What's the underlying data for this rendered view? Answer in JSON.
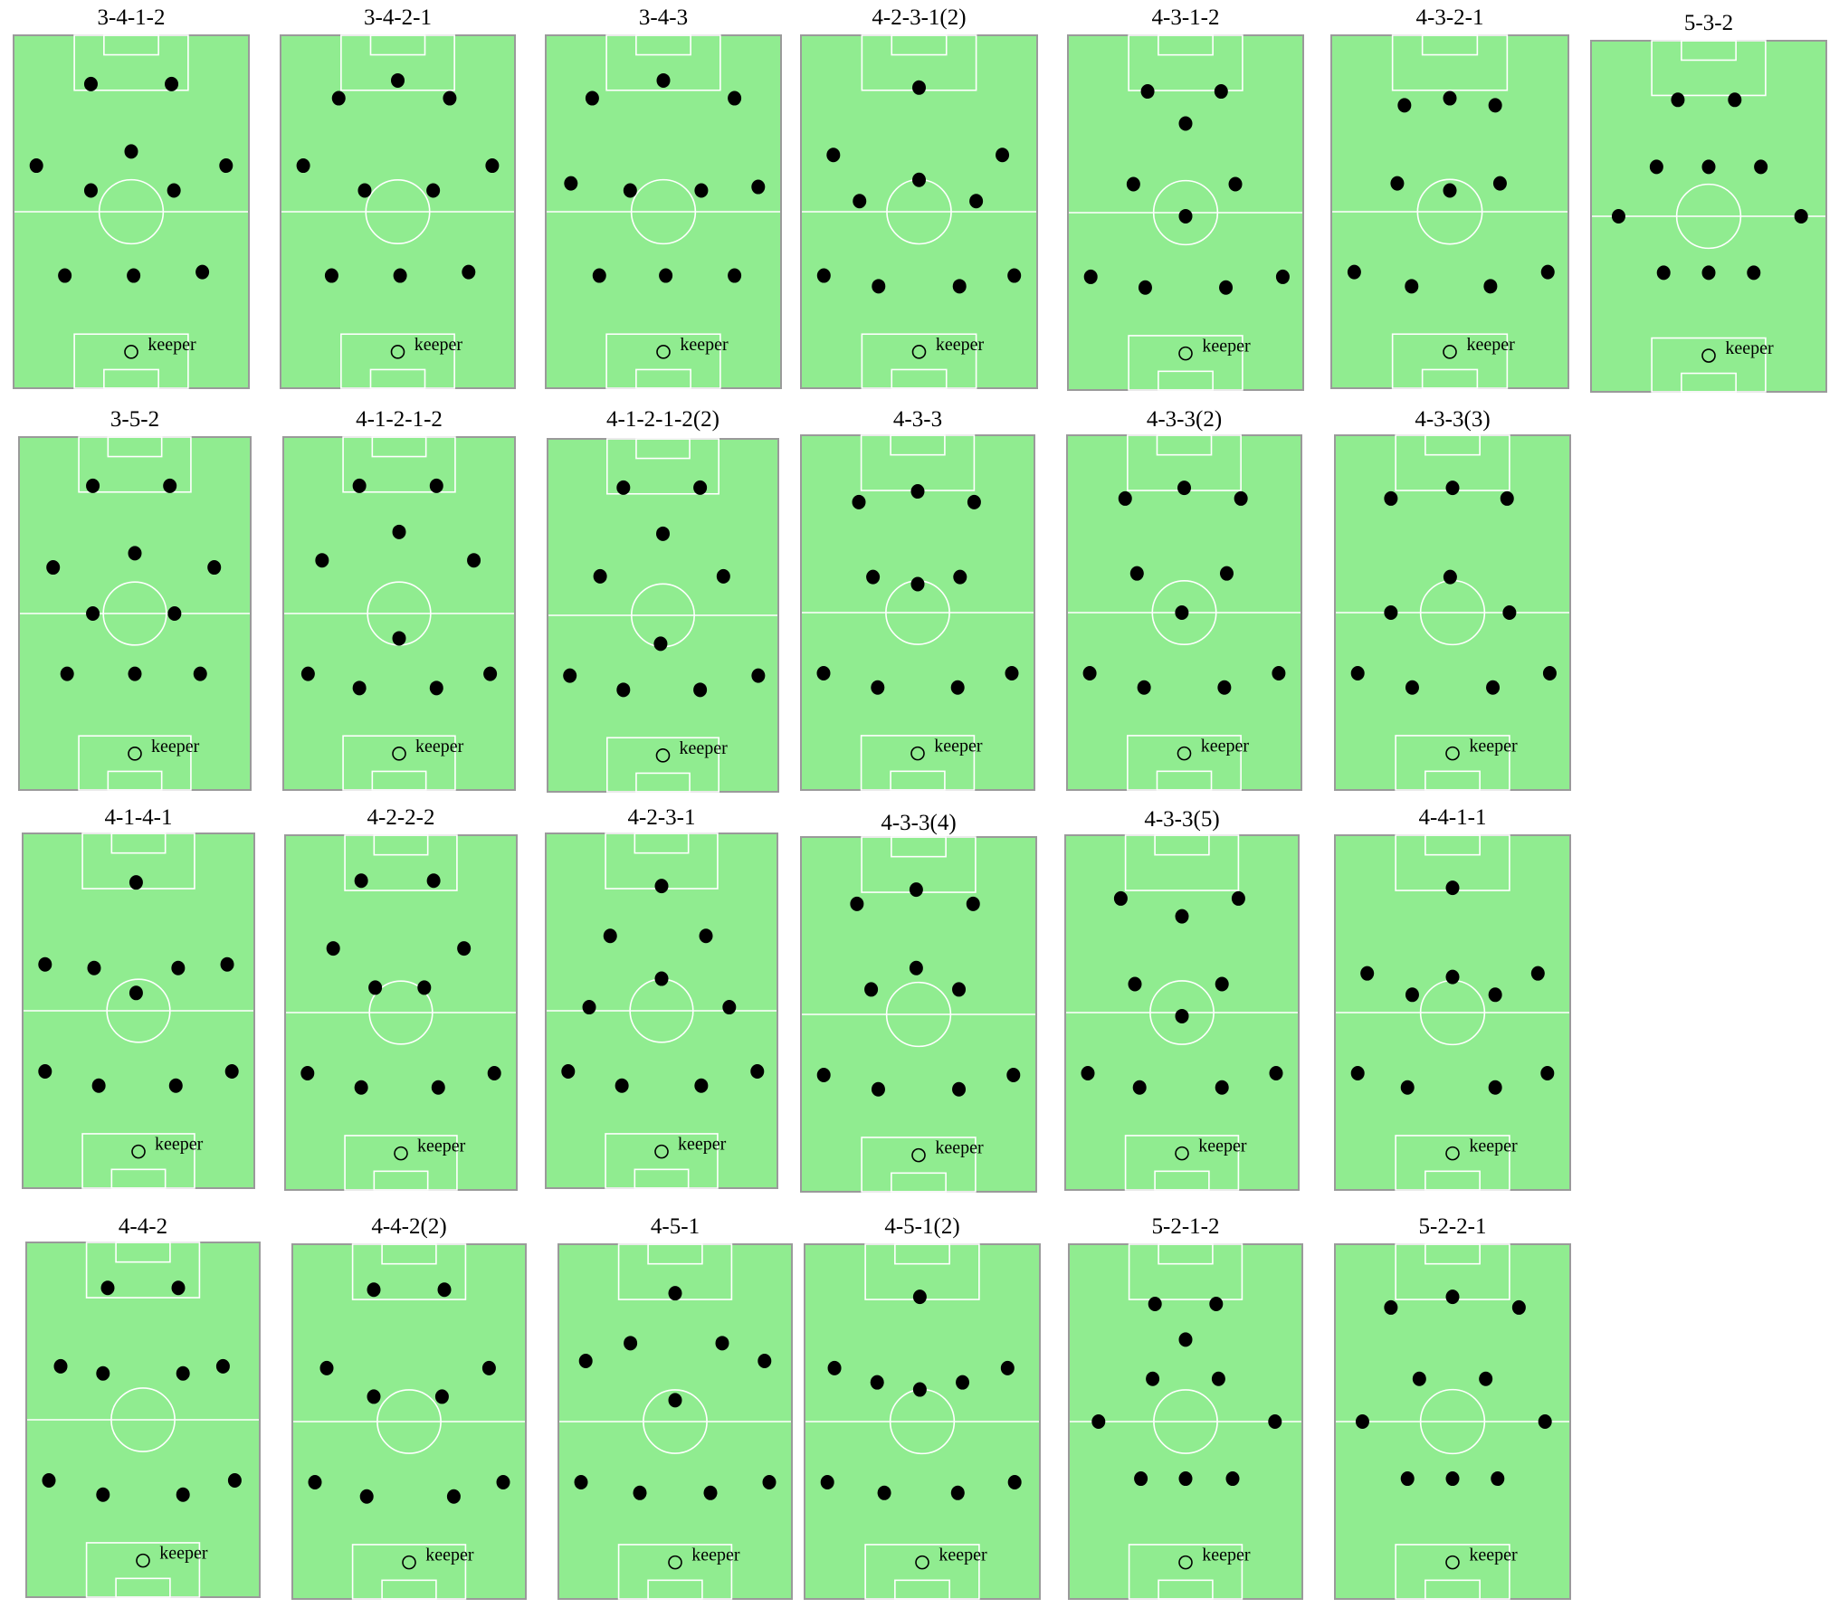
{
  "keeper_label": "keeper",
  "colors": {
    "pitch": "#90ec90",
    "pitch_border": "#9a9a9a",
    "lines": "#ffffff",
    "player": "#000000"
  },
  "formations": [
    {
      "name": "3-4-1-2",
      "players": [
        [
          0.33,
          0.14
        ],
        [
          0.67,
          0.14
        ],
        [
          0.1,
          0.37
        ],
        [
          0.5,
          0.33
        ],
        [
          0.9,
          0.37
        ],
        [
          0.33,
          0.44
        ],
        [
          0.68,
          0.44
        ],
        [
          0.22,
          0.68
        ],
        [
          0.51,
          0.68
        ],
        [
          0.8,
          0.67
        ]
      ]
    },
    {
      "name": "3-4-2-1",
      "players": [
        [
          0.5,
          0.13
        ],
        [
          0.25,
          0.18
        ],
        [
          0.72,
          0.18
        ],
        [
          0.1,
          0.37
        ],
        [
          0.36,
          0.44
        ],
        [
          0.65,
          0.44
        ],
        [
          0.9,
          0.37
        ],
        [
          0.22,
          0.68
        ],
        [
          0.51,
          0.68
        ],
        [
          0.8,
          0.67
        ]
      ]
    },
    {
      "name": "3-4-3",
      "players": [
        [
          0.5,
          0.13
        ],
        [
          0.2,
          0.18
        ],
        [
          0.8,
          0.18
        ],
        [
          0.11,
          0.42
        ],
        [
          0.36,
          0.44
        ],
        [
          0.66,
          0.44
        ],
        [
          0.9,
          0.43
        ],
        [
          0.23,
          0.68
        ],
        [
          0.51,
          0.68
        ],
        [
          0.8,
          0.68
        ]
      ]
    },
    {
      "name": "4-2-3-1(2)",
      "players": [
        [
          0.5,
          0.15
        ],
        [
          0.14,
          0.34
        ],
        [
          0.85,
          0.34
        ],
        [
          0.25,
          0.47
        ],
        [
          0.5,
          0.41
        ],
        [
          0.74,
          0.47
        ],
        [
          0.1,
          0.68
        ],
        [
          0.33,
          0.71
        ],
        [
          0.67,
          0.71
        ],
        [
          0.9,
          0.68
        ]
      ]
    },
    {
      "name": "4-3-1-2",
      "players": [
        [
          0.34,
          0.16
        ],
        [
          0.65,
          0.16
        ],
        [
          0.5,
          0.25
        ],
        [
          0.28,
          0.42
        ],
        [
          0.71,
          0.42
        ],
        [
          0.5,
          0.51
        ],
        [
          0.1,
          0.68
        ],
        [
          0.33,
          0.71
        ],
        [
          0.67,
          0.71
        ],
        [
          0.91,
          0.68
        ]
      ]
    },
    {
      "name": "4-3-2-1",
      "players": [
        [
          0.31,
          0.2
        ],
        [
          0.5,
          0.18
        ],
        [
          0.69,
          0.2
        ],
        [
          0.28,
          0.42
        ],
        [
          0.5,
          0.44
        ],
        [
          0.71,
          0.42
        ],
        [
          0.1,
          0.67
        ],
        [
          0.34,
          0.71
        ],
        [
          0.67,
          0.71
        ],
        [
          0.91,
          0.67
        ]
      ]
    },
    {
      "name": "5-3-2",
      "players": [
        [
          0.37,
          0.17
        ],
        [
          0.61,
          0.17
        ],
        [
          0.28,
          0.36
        ],
        [
          0.5,
          0.36
        ],
        [
          0.72,
          0.36
        ],
        [
          0.12,
          0.5
        ],
        [
          0.89,
          0.5
        ],
        [
          0.31,
          0.66
        ],
        [
          0.5,
          0.66
        ],
        [
          0.69,
          0.66
        ]
      ]
    },
    {
      "name": "3-5-2",
      "players": [
        [
          0.32,
          0.14
        ],
        [
          0.65,
          0.14
        ],
        [
          0.15,
          0.37
        ],
        [
          0.5,
          0.33
        ],
        [
          0.84,
          0.37
        ],
        [
          0.32,
          0.5
        ],
        [
          0.67,
          0.5
        ],
        [
          0.21,
          0.67
        ],
        [
          0.5,
          0.67
        ],
        [
          0.78,
          0.67
        ]
      ]
    },
    {
      "name": "4-1-2-1-2",
      "players": [
        [
          0.33,
          0.14
        ],
        [
          0.66,
          0.14
        ],
        [
          0.5,
          0.27
        ],
        [
          0.17,
          0.35
        ],
        [
          0.82,
          0.35
        ],
        [
          0.5,
          0.57
        ],
        [
          0.11,
          0.67
        ],
        [
          0.33,
          0.71
        ],
        [
          0.66,
          0.71
        ],
        [
          0.89,
          0.67
        ]
      ]
    },
    {
      "name": "4-1-2-1-2(2)",
      "players": [
        [
          0.33,
          0.14
        ],
        [
          0.66,
          0.14
        ],
        [
          0.5,
          0.27
        ],
        [
          0.23,
          0.39
        ],
        [
          0.76,
          0.39
        ],
        [
          0.49,
          0.58
        ],
        [
          0.1,
          0.67
        ],
        [
          0.33,
          0.71
        ],
        [
          0.66,
          0.71
        ],
        [
          0.91,
          0.67
        ]
      ]
    },
    {
      "name": "4-3-3",
      "players": [
        [
          0.25,
          0.19
        ],
        [
          0.5,
          0.16
        ],
        [
          0.74,
          0.19
        ],
        [
          0.31,
          0.4
        ],
        [
          0.68,
          0.4
        ],
        [
          0.5,
          0.42
        ],
        [
          0.1,
          0.67
        ],
        [
          0.33,
          0.71
        ],
        [
          0.67,
          0.71
        ],
        [
          0.9,
          0.67
        ]
      ]
    },
    {
      "name": "4-3-3(2)",
      "players": [
        [
          0.25,
          0.18
        ],
        [
          0.5,
          0.15
        ],
        [
          0.74,
          0.18
        ],
        [
          0.3,
          0.39
        ],
        [
          0.68,
          0.39
        ],
        [
          0.49,
          0.5
        ],
        [
          0.1,
          0.67
        ],
        [
          0.33,
          0.71
        ],
        [
          0.67,
          0.71
        ],
        [
          0.9,
          0.67
        ]
      ]
    },
    {
      "name": "4-3-3(3)",
      "players": [
        [
          0.24,
          0.18
        ],
        [
          0.5,
          0.15
        ],
        [
          0.73,
          0.18
        ],
        [
          0.49,
          0.4
        ],
        [
          0.24,
          0.5
        ],
        [
          0.74,
          0.5
        ],
        [
          0.1,
          0.67
        ],
        [
          0.33,
          0.71
        ],
        [
          0.67,
          0.71
        ],
        [
          0.91,
          0.67
        ]
      ]
    },
    {
      "name": "4-1-4-1",
      "players": [
        [
          0.49,
          0.14
        ],
        [
          0.1,
          0.37
        ],
        [
          0.31,
          0.38
        ],
        [
          0.67,
          0.38
        ],
        [
          0.88,
          0.37
        ],
        [
          0.49,
          0.45
        ],
        [
          0.1,
          0.67
        ],
        [
          0.33,
          0.71
        ],
        [
          0.66,
          0.71
        ],
        [
          0.9,
          0.67
        ]
      ]
    },
    {
      "name": "4-2-2-2",
      "players": [
        [
          0.33,
          0.13
        ],
        [
          0.64,
          0.13
        ],
        [
          0.21,
          0.32
        ],
        [
          0.77,
          0.32
        ],
        [
          0.39,
          0.43
        ],
        [
          0.6,
          0.43
        ],
        [
          0.1,
          0.67
        ],
        [
          0.33,
          0.71
        ],
        [
          0.66,
          0.71
        ],
        [
          0.9,
          0.67
        ]
      ]
    },
    {
      "name": "4-2-3-1",
      "players": [
        [
          0.5,
          0.15
        ],
        [
          0.28,
          0.29
        ],
        [
          0.69,
          0.29
        ],
        [
          0.5,
          0.41
        ],
        [
          0.19,
          0.49
        ],
        [
          0.79,
          0.49
        ],
        [
          0.1,
          0.67
        ],
        [
          0.33,
          0.71
        ],
        [
          0.67,
          0.71
        ],
        [
          0.91,
          0.67
        ]
      ]
    },
    {
      "name": "4-3-3(4)",
      "players": [
        [
          0.24,
          0.19
        ],
        [
          0.49,
          0.15
        ],
        [
          0.73,
          0.19
        ],
        [
          0.3,
          0.43
        ],
        [
          0.49,
          0.37
        ],
        [
          0.67,
          0.43
        ],
        [
          0.1,
          0.67
        ],
        [
          0.33,
          0.71
        ],
        [
          0.67,
          0.71
        ],
        [
          0.9,
          0.67
        ]
      ]
    },
    {
      "name": "4-3-3(5)",
      "players": [
        [
          0.24,
          0.18
        ],
        [
          0.5,
          0.23
        ],
        [
          0.74,
          0.18
        ],
        [
          0.3,
          0.42
        ],
        [
          0.67,
          0.42
        ],
        [
          0.5,
          0.51
        ],
        [
          0.1,
          0.67
        ],
        [
          0.32,
          0.71
        ],
        [
          0.67,
          0.71
        ],
        [
          0.9,
          0.67
        ]
      ]
    },
    {
      "name": "4-4-1-1",
      "players": [
        [
          0.5,
          0.15
        ],
        [
          0.14,
          0.39
        ],
        [
          0.33,
          0.45
        ],
        [
          0.5,
          0.4
        ],
        [
          0.68,
          0.45
        ],
        [
          0.86,
          0.39
        ],
        [
          0.1,
          0.67
        ],
        [
          0.31,
          0.71
        ],
        [
          0.68,
          0.71
        ],
        [
          0.9,
          0.67
        ]
      ]
    },
    {
      "name": "4-4-2",
      "players": [
        [
          0.35,
          0.13
        ],
        [
          0.65,
          0.13
        ],
        [
          0.15,
          0.35
        ],
        [
          0.33,
          0.37
        ],
        [
          0.67,
          0.37
        ],
        [
          0.84,
          0.35
        ],
        [
          0.1,
          0.67
        ],
        [
          0.33,
          0.71
        ],
        [
          0.67,
          0.71
        ],
        [
          0.89,
          0.67
        ]
      ]
    },
    {
      "name": "4-4-2(2)",
      "players": [
        [
          0.35,
          0.13
        ],
        [
          0.65,
          0.13
        ],
        [
          0.15,
          0.35
        ],
        [
          0.35,
          0.43
        ],
        [
          0.64,
          0.43
        ],
        [
          0.84,
          0.35
        ],
        [
          0.1,
          0.67
        ],
        [
          0.32,
          0.71
        ],
        [
          0.69,
          0.71
        ],
        [
          0.9,
          0.67
        ]
      ]
    },
    {
      "name": "4-5-1",
      "players": [
        [
          0.5,
          0.14
        ],
        [
          0.31,
          0.28
        ],
        [
          0.7,
          0.28
        ],
        [
          0.12,
          0.33
        ],
        [
          0.88,
          0.33
        ],
        [
          0.5,
          0.44
        ],
        [
          0.1,
          0.67
        ],
        [
          0.35,
          0.7
        ],
        [
          0.65,
          0.7
        ],
        [
          0.9,
          0.67
        ]
      ]
    },
    {
      "name": "4-5-1(2)",
      "players": [
        [
          0.49,
          0.15
        ],
        [
          0.13,
          0.35
        ],
        [
          0.31,
          0.39
        ],
        [
          0.49,
          0.41
        ],
        [
          0.67,
          0.39
        ],
        [
          0.86,
          0.35
        ],
        [
          0.1,
          0.67
        ],
        [
          0.34,
          0.7
        ],
        [
          0.65,
          0.7
        ],
        [
          0.89,
          0.67
        ]
      ]
    },
    {
      "name": "5-2-1-2",
      "players": [
        [
          0.37,
          0.17
        ],
        [
          0.63,
          0.17
        ],
        [
          0.5,
          0.27
        ],
        [
          0.36,
          0.38
        ],
        [
          0.64,
          0.38
        ],
        [
          0.13,
          0.5
        ],
        [
          0.88,
          0.5
        ],
        [
          0.31,
          0.66
        ],
        [
          0.5,
          0.66
        ],
        [
          0.7,
          0.66
        ]
      ]
    },
    {
      "name": "5-2-2-1",
      "players": [
        [
          0.24,
          0.18
        ],
        [
          0.5,
          0.15
        ],
        [
          0.78,
          0.18
        ],
        [
          0.36,
          0.38
        ],
        [
          0.64,
          0.38
        ],
        [
          0.12,
          0.5
        ],
        [
          0.89,
          0.5
        ],
        [
          0.31,
          0.66
        ],
        [
          0.5,
          0.66
        ],
        [
          0.69,
          0.66
        ]
      ]
    }
  ]
}
